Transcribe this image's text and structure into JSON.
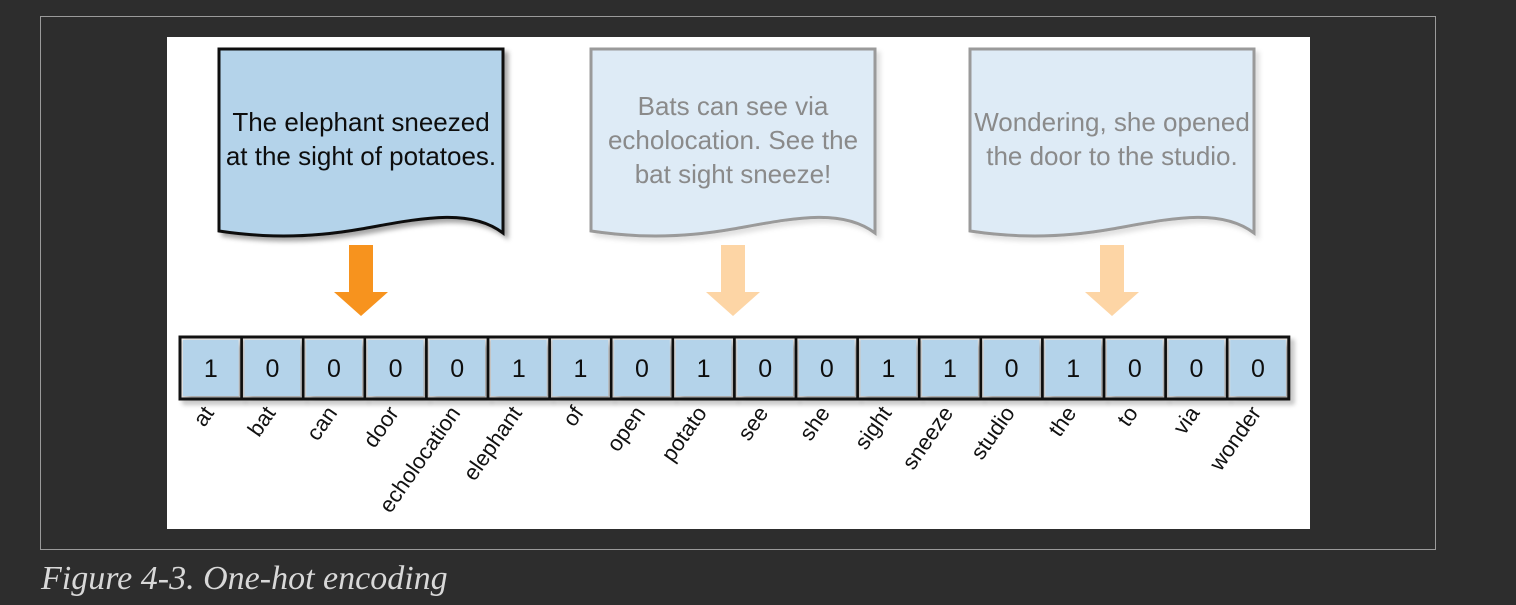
{
  "documents": [
    {
      "lines": [
        "The elephant sneezed",
        "at the sight of potatoes."
      ],
      "active": true
    },
    {
      "lines": [
        "Bats can see via",
        "echolocation. See the",
        "bat sight sneeze!"
      ],
      "active": false
    },
    {
      "lines": [
        "Wondering, she opened",
        "the door to the studio."
      ],
      "active": false
    }
  ],
  "vector": {
    "values": [
      "1",
      "0",
      "0",
      "0",
      "0",
      "1",
      "1",
      "0",
      "1",
      "0",
      "0",
      "1",
      "1",
      "0",
      "1",
      "0",
      "0",
      "0"
    ],
    "vocabulary": [
      "at",
      "bat",
      "can",
      "door",
      "echolocation",
      "elephant",
      "of",
      "open",
      "potato",
      "see",
      "she",
      "sight",
      "sneeze",
      "studio",
      "the",
      "to",
      "via",
      "wonder"
    ]
  },
  "caption": "Figure 4-3. One-hot encoding",
  "colors": {
    "active_doc_fill": "#b4d3ea",
    "inactive_doc_fill": "#deebf6",
    "active_arrow": "#f7931e",
    "inactive_arrow": "#fdd5a5",
    "cell_fill": "#b4d3ea"
  }
}
